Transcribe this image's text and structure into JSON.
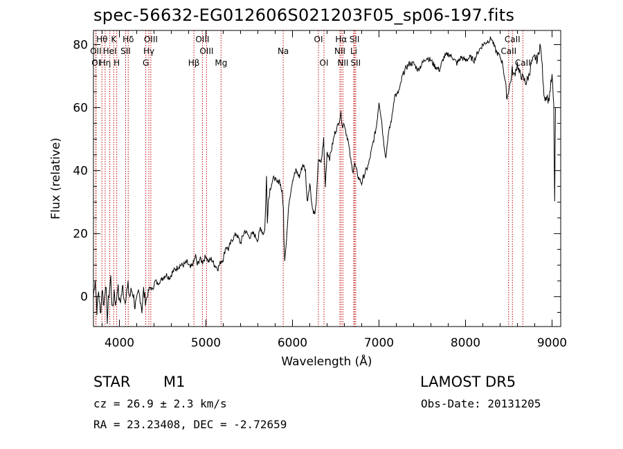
{
  "chart_data": {
    "type": "line",
    "title": "spec-56632-EG012606S021203F05_sp06-197.fits",
    "xlabel": "Wavelength (Å)",
    "ylabel": "Flux (relative)",
    "xlim": [
      3700,
      9100
    ],
    "ylim": [
      -9.5,
      84.5
    ],
    "xticks": [
      4000,
      5000,
      6000,
      7000,
      8000,
      9000
    ],
    "yticks": [
      0,
      20,
      40,
      60,
      80
    ],
    "grid": false,
    "line_color": "#000000",
    "marker_color": "#c00000",
    "series": [
      {
        "x": [
          3700,
          3720,
          3740,
          3760,
          3780,
          3800,
          3820,
          3840,
          3860,
          3880,
          3900,
          3920,
          3940,
          3960,
          3980,
          4000,
          4020,
          4040,
          4060,
          4080,
          4100,
          4120,
          4140,
          4160,
          4180,
          4200,
          4220,
          4240,
          4260,
          4280,
          4300,
          4320,
          4340,
          4360,
          4380,
          4400,
          4420,
          4440,
          4460,
          4480,
          4500,
          4540,
          4580,
          4620,
          4660,
          4700,
          4740,
          4780,
          4820,
          4860,
          4880,
          4900,
          4930,
          4960,
          5000,
          5030,
          5060,
          5100,
          5140,
          5170,
          5200,
          5230,
          5260,
          5300,
          5350,
          5400,
          5450,
          5500,
          5550,
          5600,
          5630,
          5660,
          5680,
          5700,
          5710,
          5720,
          5740,
          5760,
          5790,
          5820,
          5850,
          5880,
          5895,
          5900,
          5910,
          5930,
          5960,
          6000,
          6040,
          6080,
          6120,
          6150,
          6170,
          6200,
          6230,
          6260,
          6280,
          6300,
          6330,
          6360,
          6380,
          6400,
          6430,
          6460,
          6490,
          6520,
          6540,
          6560,
          6580,
          6600,
          6620,
          6640,
          6660,
          6680,
          6700,
          6720,
          6740,
          6760,
          6780,
          6800,
          6820,
          6850,
          6880,
          6910,
          6940,
          6970,
          7000,
          7030,
          7050,
          7080,
          7100,
          7120,
          7150,
          7180,
          7210,
          7240,
          7270,
          7300,
          7350,
          7400,
          7450,
          7500,
          7550,
          7600,
          7650,
          7700,
          7750,
          7800,
          7850,
          7900,
          7950,
          8000,
          8050,
          8100,
          8150,
          8200,
          8250,
          8300,
          8350,
          8400,
          8430,
          8450,
          8480,
          8500,
          8520,
          8540,
          8560,
          8580,
          8600,
          8620,
          8650,
          8670,
          8700,
          8730,
          8760,
          8800,
          8830,
          8860,
          8880,
          8900,
          8920,
          8940,
          8960,
          8980,
          9000,
          9020,
          9030,
          9040
        ],
        "y": [
          0,
          6,
          -4,
          2,
          -6,
          3,
          -3,
          5,
          -7,
          1,
          6,
          -5,
          2,
          -3,
          4,
          -2,
          0,
          3,
          -1,
          1,
          3,
          0,
          2,
          1,
          -3,
          -2,
          1,
          0,
          -4,
          2,
          -2,
          0,
          2,
          3,
          2,
          4,
          5,
          4,
          5,
          5,
          6,
          7,
          6,
          8,
          9,
          10,
          10,
          11,
          9,
          11,
          13,
          10,
          12,
          11,
          13,
          11,
          12,
          10,
          9,
          11,
          12,
          16,
          15,
          18,
          20,
          17,
          21,
          19,
          20,
          18,
          22,
          20,
          21,
          38,
          24,
          30,
          34,
          36,
          38,
          36,
          37,
          33,
          28,
          20,
          12,
          18,
          30,
          37,
          40,
          38,
          42,
          40,
          30,
          36,
          28,
          26,
          32,
          44,
          42,
          50,
          35,
          46,
          44,
          48,
          52,
          54,
          56,
          58,
          54,
          55,
          52,
          50,
          46,
          42,
          40,
          42,
          40,
          38,
          37,
          36,
          38,
          40,
          42,
          46,
          50,
          54,
          62,
          56,
          50,
          44,
          50,
          53,
          57,
          64,
          64,
          66,
          70,
          72,
          74,
          74,
          72,
          74,
          76,
          75,
          73,
          72,
          76,
          77,
          76,
          74,
          76,
          75,
          76,
          75,
          78,
          80,
          81,
          82,
          78,
          76,
          74,
          70,
          63,
          66,
          68,
          72,
          70,
          72,
          74,
          71,
          70,
          69,
          68,
          70,
          74,
          76,
          75,
          80,
          76,
          66,
          63,
          64,
          62,
          66,
          70,
          60,
          30,
          60
        ]
      }
    ],
    "lines": [
      {
        "label": "Hθ",
        "x": 3798,
        "row": 1
      },
      {
        "label": "OII",
        "x": 3727,
        "row": 2
      },
      {
        "label": "OI",
        "x": 3730,
        "row": 3
      },
      {
        "label": "K",
        "x": 3934,
        "row": 1
      },
      {
        "label": "HeI",
        "x": 3889,
        "row": 2
      },
      {
        "label": "Hη",
        "x": 3835,
        "row": 3
      },
      {
        "label": "H",
        "x": 3969,
        "row": 3
      },
      {
        "label": "Hδ",
        "x": 4102,
        "row": 1
      },
      {
        "label": "SII",
        "x": 4072,
        "row": 2
      },
      {
        "label": "OIII",
        "x": 4363,
        "row": 1
      },
      {
        "label": "Hγ",
        "x": 4340,
        "row": 2
      },
      {
        "label": "G",
        "x": 4305,
        "row": 3
      },
      {
        "label": "Hβ",
        "x": 4861,
        "row": 3
      },
      {
        "label": "OIII",
        "x": 4959,
        "row": 1
      },
      {
        "label": "OIII",
        "x": 5007,
        "row": 2
      },
      {
        "label": "Mg",
        "x": 5175,
        "row": 3
      },
      {
        "label": "Na",
        "x": 5893,
        "row": 2
      },
      {
        "label": "OI",
        "x": 6300,
        "row": 1
      },
      {
        "label": "OI",
        "x": 6364,
        "row": 3
      },
      {
        "label": "Hα",
        "x": 6563,
        "row": 1
      },
      {
        "label": "NII",
        "x": 6548,
        "row": 2
      },
      {
        "label": "NII",
        "x": 6583,
        "row": 3
      },
      {
        "label": "SII",
        "x": 6717,
        "row": 1
      },
      {
        "label": "Li",
        "x": 6708,
        "row": 2
      },
      {
        "label": "SII",
        "x": 6731,
        "row": 3
      },
      {
        "label": "CaII",
        "x": 8542,
        "row": 1
      },
      {
        "label": "CaII",
        "x": 8498,
        "row": 2
      },
      {
        "label": "CaII",
        "x": 8662,
        "row": 3
      }
    ]
  },
  "info": {
    "object_type": "STAR",
    "subclass": "M1",
    "survey": "LAMOST DR5",
    "cz_line": "cz = 26.9 ± 2.3 km/s",
    "obs_date": "Obs-Date: 20131205",
    "coords": "RA =  23.23408, DEC =  -2.72659"
  }
}
